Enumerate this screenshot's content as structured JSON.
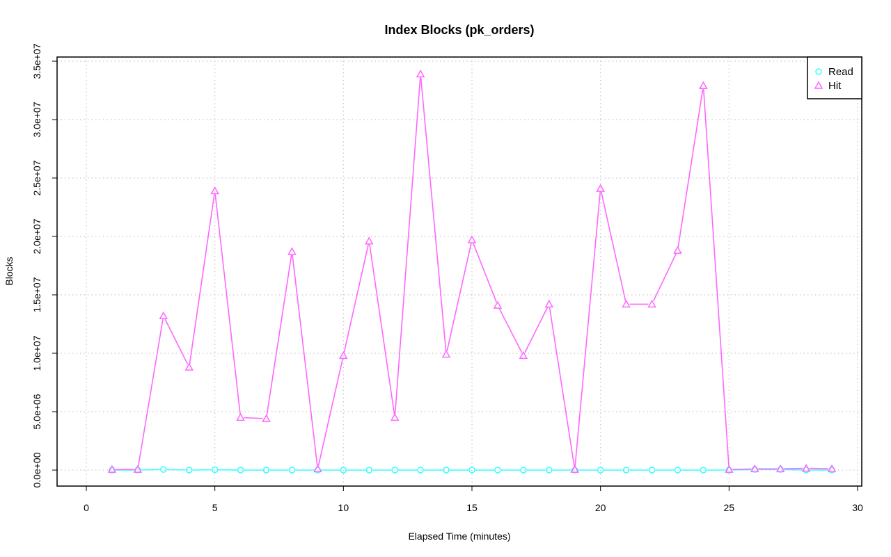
{
  "chart_data": {
    "type": "line",
    "title": "Index Blocks (pk_orders)",
    "xlabel": "Elapsed Time (minutes)",
    "ylabel": "Blocks",
    "xlim": [
      0,
      30
    ],
    "ylim": [
      0,
      35000000
    ],
    "xticks": [
      0,
      5,
      10,
      15,
      20,
      25,
      30
    ],
    "xtick_labels": [
      "0",
      "5",
      "10",
      "15",
      "20",
      "25",
      "30"
    ],
    "yticks": [
      0,
      5000000,
      10000000,
      15000000,
      20000000,
      25000000,
      30000000,
      35000000
    ],
    "ytick_labels": [
      "0.0e+00",
      "5.0e+06",
      "1.0e+07",
      "1.5e+07",
      "2.0e+07",
      "2.5e+07",
      "3.0e+07",
      "3.5e+07"
    ],
    "grid": true,
    "legend_position": "top-right",
    "x": [
      1,
      2,
      3,
      4,
      5,
      6,
      7,
      8,
      9,
      10,
      11,
      12,
      13,
      14,
      15,
      16,
      17,
      18,
      19,
      20,
      21,
      22,
      23,
      24,
      25,
      26,
      27,
      28,
      29
    ],
    "series": [
      {
        "name": "Read",
        "color": "#33ffff",
        "marker": "circle",
        "values": [
          0,
          0,
          50000,
          0,
          30000,
          0,
          0,
          0,
          0,
          0,
          0,
          0,
          0,
          0,
          0,
          0,
          0,
          0,
          0,
          0,
          0,
          0,
          0,
          0,
          0,
          50000,
          50000,
          0,
          0
        ]
      },
      {
        "name": "Hit",
        "color": "#ff66ff",
        "marker": "triangle",
        "values": [
          50000,
          50000,
          13200000,
          8800000,
          23900000,
          4500000,
          4400000,
          18700000,
          100000,
          9800000,
          19600000,
          4500000,
          33900000,
          9900000,
          19700000,
          14100000,
          9800000,
          14200000,
          50000,
          24100000,
          14200000,
          14200000,
          18800000,
          32900000,
          50000,
          100000,
          100000,
          150000,
          100000
        ]
      }
    ]
  }
}
